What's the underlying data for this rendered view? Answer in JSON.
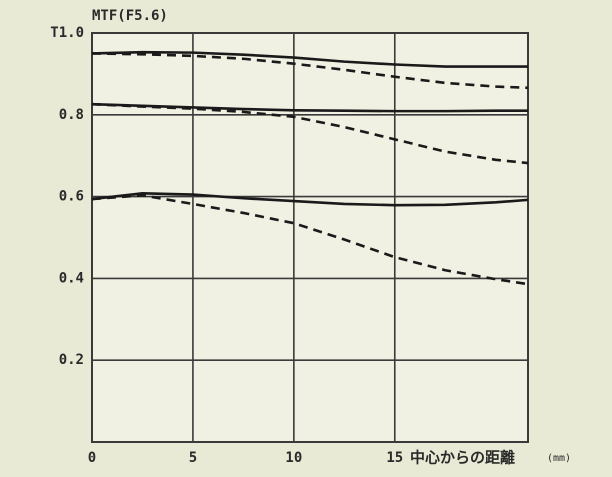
{
  "chart_data": {
    "type": "line",
    "title": "MTF(F5.6)",
    "x_label": "中心からの距離",
    "x_unit": "(mm)",
    "x": [
      0,
      2.5,
      5,
      7.5,
      10,
      12.5,
      15,
      17.5,
      20,
      21.6
    ],
    "xlim": [
      0,
      21.6
    ],
    "xticks": [
      0,
      5,
      10,
      15
    ],
    "ylim": [
      0,
      1
    ],
    "yticks": [
      0.2,
      0.4,
      0.6,
      0.8,
      {
        "value": 1,
        "label": "T1.0"
      }
    ],
    "grid": true,
    "series": [
      {
        "color": "#1a1a1a",
        "dash": false,
        "values": [
          0.95,
          0.953,
          0.952,
          0.947,
          0.94,
          0.93,
          0.923,
          0.918,
          0.918,
          0.918
        ]
      },
      {
        "color": "#1a1a1a",
        "dash": true,
        "values": [
          0.95,
          0.948,
          0.944,
          0.937,
          0.925,
          0.91,
          0.893,
          0.878,
          0.869,
          0.866
        ]
      },
      {
        "color": "#1a1a1a",
        "dash": false,
        "values": [
          0.826,
          0.822,
          0.818,
          0.814,
          0.811,
          0.81,
          0.809,
          0.809,
          0.81,
          0.81
        ]
      },
      {
        "color": "#1a1a1a",
        "dash": true,
        "values": [
          0.826,
          0.82,
          0.815,
          0.807,
          0.795,
          0.77,
          0.74,
          0.71,
          0.69,
          0.682
        ]
      },
      {
        "color": "#1a1a1a",
        "dash": false,
        "values": [
          0.594,
          0.608,
          0.605,
          0.596,
          0.589,
          0.582,
          0.579,
          0.58,
          0.586,
          0.592
        ]
      },
      {
        "color": "#1a1a1a",
        "dash": true,
        "values": [
          0.594,
          0.603,
          0.582,
          0.56,
          0.535,
          0.495,
          0.452,
          0.42,
          0.398,
          0.386
        ]
      }
    ]
  }
}
